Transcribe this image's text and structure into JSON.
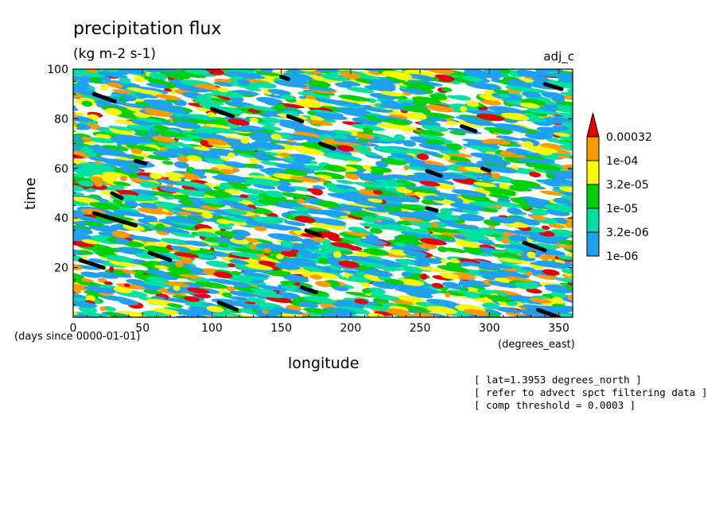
{
  "chart_data": {
    "type": "heatmap",
    "title": "precipitation flux",
    "units": "(kg m-2 s-1)",
    "run_label": "adj_c",
    "xlabel": "longitude",
    "x_units": "(degrees_east)",
    "ylabel": "time",
    "y_units": "(days since 0000-01-01)",
    "xlim": [
      0,
      360
    ],
    "ylim": [
      0,
      100
    ],
    "x_ticks": [
      0,
      50,
      100,
      150,
      200,
      250,
      300,
      350
    ],
    "y_ticks": [
      20,
      40,
      60,
      80,
      100
    ],
    "x_tick_labels": [
      "0",
      "50",
      "100",
      "150",
      "200",
      "250",
      "300",
      "350"
    ],
    "y_tick_labels": [
      "20",
      "40",
      "60",
      "80",
      "100"
    ],
    "colorbar": {
      "levels": [
        "1e-06",
        "3.2e-06",
        "1e-05",
        "3.2e-05",
        "1e-04",
        "0.00032"
      ],
      "colors": [
        "#1fa0f0",
        "#00e0a0",
        "#00d000",
        "#f8f800",
        "#ff9a00",
        "#e80000"
      ]
    },
    "threshold_overlay": {
      "color": "#000000",
      "segments": [
        {
          "lon": [
            15,
            30
          ],
          "time": [
            90,
            87
          ]
        },
        {
          "lon": [
            100,
            115
          ],
          "time": [
            84,
            81
          ]
        },
        {
          "lon": [
            155,
            165
          ],
          "time": [
            81,
            79
          ]
        },
        {
          "lon": [
            178,
            188
          ],
          "time": [
            70,
            68
          ]
        },
        {
          "lon": [
            150,
            155
          ],
          "time": [
            97,
            96
          ]
        },
        {
          "lon": [
            255,
            265
          ],
          "time": [
            59,
            57
          ]
        },
        {
          "lon": [
            280,
            290
          ],
          "time": [
            77,
            75
          ]
        },
        {
          "lon": [
            340,
            352
          ],
          "time": [
            94,
            92
          ]
        },
        {
          "lon": [
            15,
            45
          ],
          "time": [
            42,
            37
          ]
        },
        {
          "lon": [
            5,
            22
          ],
          "time": [
            23,
            20
          ]
        },
        {
          "lon": [
            55,
            70
          ],
          "time": [
            26,
            23
          ]
        },
        {
          "lon": [
            168,
            178
          ],
          "time": [
            35,
            33
          ]
        },
        {
          "lon": [
            165,
            175
          ],
          "time": [
            12,
            10
          ]
        },
        {
          "lon": [
            105,
            118
          ],
          "time": [
            6,
            3
          ]
        },
        {
          "lon": [
            325,
            340
          ],
          "time": [
            30,
            27
          ]
        },
        {
          "lon": [
            335,
            350
          ],
          "time": [
            3,
            0
          ]
        },
        {
          "lon": [
            28,
            35
          ],
          "time": [
            50,
            48
          ]
        },
        {
          "lon": [
            45,
            52
          ],
          "time": [
            63,
            62
          ]
        },
        {
          "lon": [
            295,
            300
          ],
          "time": [
            60,
            59
          ]
        },
        {
          "lon": [
            255,
            262
          ],
          "time": [
            44,
            43
          ]
        }
      ]
    }
  },
  "annotations": [
    "[ lat=1.3953 degrees_north ]",
    "[ refer to advect spct filtering data ]",
    "[ comp threshold = 0.0003 ]"
  ]
}
